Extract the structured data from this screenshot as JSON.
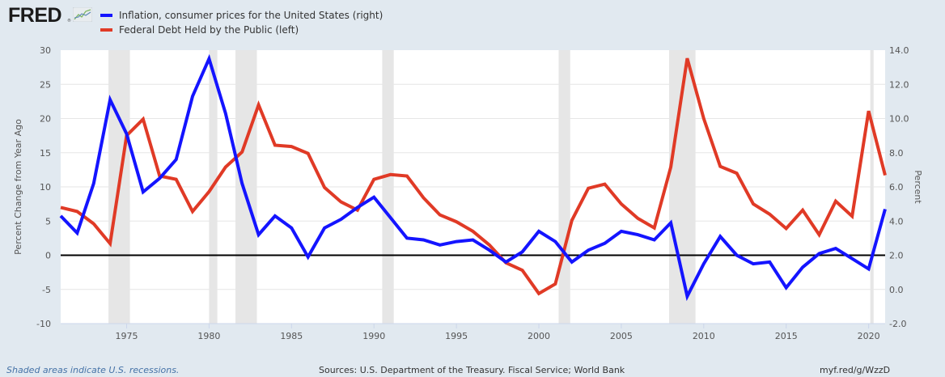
{
  "brand": {
    "name": "FRED",
    "reg": "®",
    "icon": "fred-chart-icon"
  },
  "legend": [
    {
      "label": "Inflation, consumer prices for the United States (right)",
      "color": "#1414ff"
    },
    {
      "label": "Federal Debt Held by the Public (left)",
      "color": "#e03a26"
    }
  ],
  "footer": {
    "note": "Shaded areas indicate U.S. recessions.",
    "sources": "Sources: U.S. Department of the Treasury. Fiscal Service; World Bank",
    "link": "myf.red/g/WzzD"
  },
  "chart_data": {
    "type": "line",
    "title": "",
    "xlabel": "",
    "ylabel_left": "Percent Change from Year Ago",
    "ylabel_right": "Percent",
    "xlim": [
      1971,
      2021
    ],
    "ylim_left": [
      -10,
      30
    ],
    "ylim_right": [
      -2,
      14
    ],
    "x_ticks": [
      1975,
      1980,
      1985,
      1990,
      1995,
      2000,
      2005,
      2010,
      2015,
      2020
    ],
    "y_ticks_left": [
      "30",
      "25",
      "20",
      "15",
      "10",
      "5",
      "0",
      "-5",
      "-10"
    ],
    "y_ticks_right": [
      "14.0",
      "12.0",
      "10.0",
      "8.0",
      "6.0",
      "4.0",
      "2.0",
      "0.0",
      "-2.0"
    ],
    "grid": true,
    "zero_line_left": 0,
    "legend_position": "top-left",
    "recessions": [
      [
        1973.9,
        1975.2
      ],
      [
        1980.0,
        1980.5
      ],
      [
        1981.6,
        1982.9
      ],
      [
        1990.5,
        1991.2
      ],
      [
        2001.2,
        2001.9
      ],
      [
        2007.9,
        2009.5
      ],
      [
        2020.1,
        2020.3
      ]
    ],
    "x": [
      1971,
      1972,
      1973,
      1974,
      1975,
      1976,
      1977,
      1978,
      1979,
      1980,
      1981,
      1982,
      1983,
      1984,
      1985,
      1986,
      1987,
      1988,
      1989,
      1990,
      1991,
      1992,
      1993,
      1994,
      1995,
      1996,
      1997,
      1998,
      1999,
      2000,
      2001,
      2002,
      2003,
      2004,
      2005,
      2006,
      2007,
      2008,
      2009,
      2010,
      2011,
      2012,
      2013,
      2014,
      2015,
      2016,
      2017,
      2018,
      2019,
      2020,
      2021
    ],
    "series": [
      {
        "name": "Inflation, consumer prices for the United States",
        "axis": "right",
        "color": "#1414ff",
        "values": [
          4.3,
          3.3,
          6.2,
          11.1,
          9.1,
          5.7,
          6.5,
          7.6,
          11.3,
          13.5,
          10.3,
          6.2,
          3.2,
          4.3,
          3.6,
          1.9,
          3.6,
          4.1,
          4.8,
          5.4,
          4.2,
          3.0,
          2.9,
          2.6,
          2.8,
          2.9,
          2.3,
          1.6,
          2.2,
          3.4,
          2.8,
          1.6,
          2.3,
          2.7,
          3.4,
          3.2,
          2.9,
          3.9,
          -0.4,
          1.5,
          3.1,
          2.0,
          1.5,
          1.6,
          0.1,
          1.3,
          2.1,
          2.4,
          1.8,
          1.2,
          4.7
        ]
      },
      {
        "name": "Federal Debt Held by the Public",
        "axis": "left",
        "color": "#e03a26",
        "values": [
          7.0,
          6.4,
          4.6,
          1.7,
          17.5,
          19.9,
          11.6,
          11.1,
          6.4,
          9.3,
          12.9,
          15.1,
          22.0,
          16.1,
          15.9,
          14.9,
          9.9,
          7.8,
          6.6,
          11.1,
          11.8,
          11.6,
          8.4,
          5.9,
          4.9,
          3.5,
          1.5,
          -1.1,
          -2.2,
          -5.6,
          -4.2,
          5.1,
          9.8,
          10.4,
          7.5,
          5.4,
          4.0,
          12.9,
          28.8,
          20.0,
          13.0,
          12.0,
          7.5,
          6.0,
          3.9,
          6.6,
          3.0,
          7.9,
          5.7,
          21.1,
          11.7
        ]
      }
    ]
  }
}
